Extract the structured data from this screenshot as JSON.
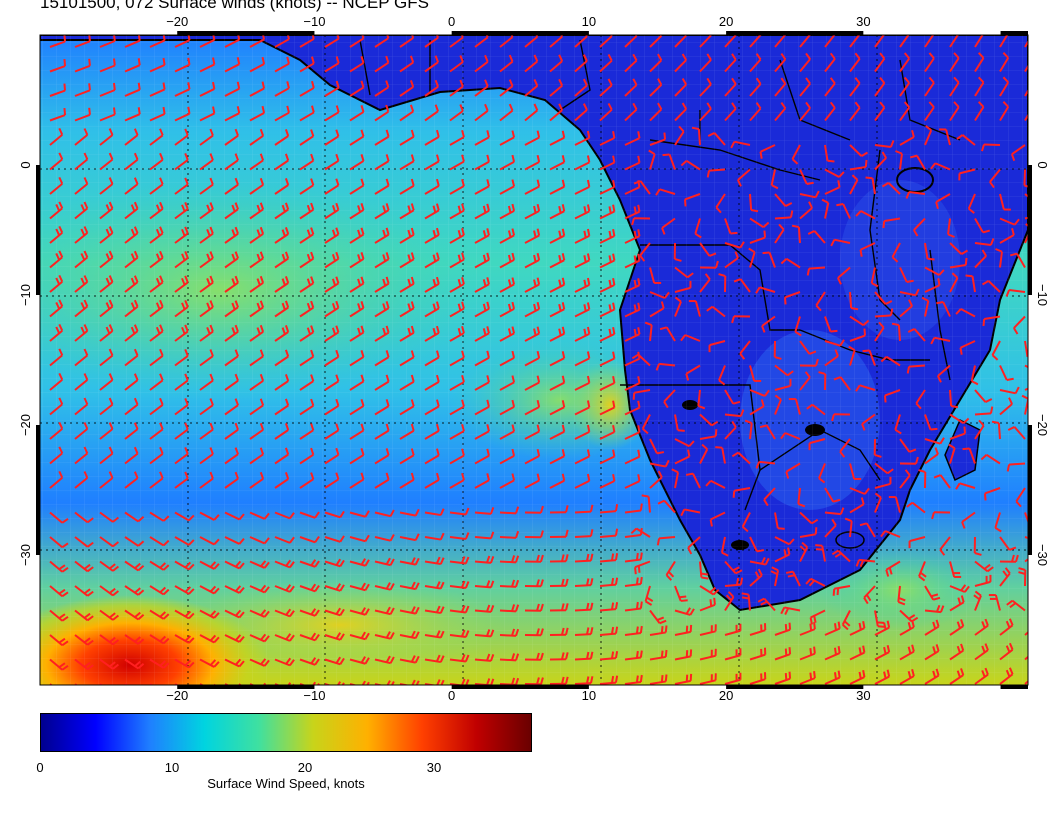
{
  "map": {
    "title": "15101500, 072 Surface winds (knots) -- NCEP GFS",
    "lon_range": [
      -30,
      42
    ],
    "lat_range": [
      -40,
      10
    ],
    "lon_ticks": [
      "−20",
      "−10",
      "0",
      "10",
      "20",
      "30"
    ],
    "lat_ticks": [
      "0",
      "−10",
      "−20",
      "−30"
    ],
    "barb_color": "#ff2020",
    "coast_color": "#000000",
    "fields": "gridded surface wind speed (knots) with red wind barbs; coastlines and country borders in black"
  },
  "colorbar": {
    "label": "Surface Wind Speed, knots",
    "ticks": [
      "0",
      "10",
      "20",
      "30"
    ],
    "range": [
      0,
      37
    ],
    "colors": [
      "#00008f",
      "#0000ff",
      "#1f7fff",
      "#00d4e0",
      "#3fe0a0",
      "#c8d41a",
      "#ffb000",
      "#ff4000",
      "#c00000",
      "#6a0000"
    ]
  }
}
